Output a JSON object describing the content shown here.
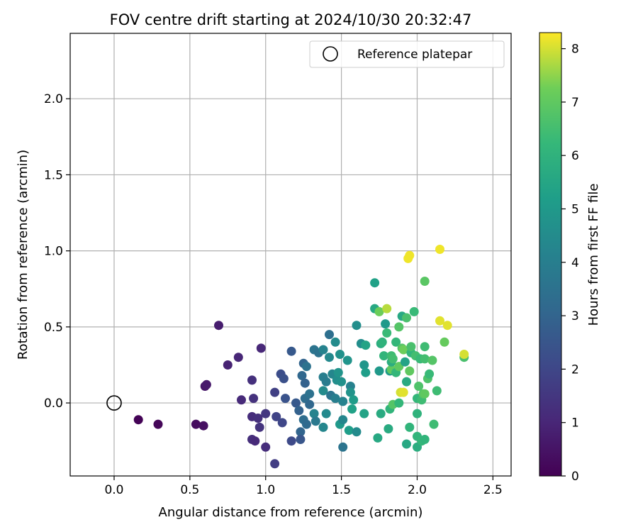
{
  "chart_data": {
    "type": "scatter",
    "title": "FOV centre drift starting at 2024/10/30 20:32:47",
    "xlabel": "Angular distance from reference (arcmin)",
    "ylabel": "Rotation from reference (arcmin)",
    "xlim": [
      -0.29,
      2.62
    ],
    "ylim": [
      -0.48,
      2.43
    ],
    "xticks": [
      0.0,
      0.5,
      1.0,
      1.5,
      2.0,
      2.5
    ],
    "xtick_labels": [
      "0.0",
      "0.5",
      "1.0",
      "1.5",
      "2.0",
      "2.5"
    ],
    "yticks": [
      0.0,
      0.5,
      1.0,
      1.5,
      2.0
    ],
    "ytick_labels": [
      "0.0",
      "0.5",
      "1.0",
      "1.5",
      "2.0"
    ],
    "grid": true,
    "colormap": "viridis",
    "colorbar": {
      "label": "Hours from first FF file",
      "range": [
        0,
        8.3
      ],
      "ticks": [
        0,
        1,
        2,
        3,
        4,
        5,
        6,
        7,
        8
      ],
      "tick_labels": [
        "0",
        "1",
        "2",
        "3",
        "4",
        "5",
        "6",
        "7",
        "8"
      ]
    },
    "legend": {
      "position": "top-right",
      "entries": [
        {
          "label": "Reference platepar",
          "marker": "open-circle"
        }
      ]
    },
    "reference": {
      "x": 0.0,
      "y": 0.0
    },
    "points": [
      [
        0.16,
        -0.11,
        0.05
      ],
      [
        0.29,
        -0.14,
        0.15
      ],
      [
        0.54,
        -0.14,
        0.3
      ],
      [
        0.59,
        -0.15,
        0.4
      ],
      [
        0.6,
        0.11,
        0.55
      ],
      [
        0.61,
        0.12,
        0.65
      ],
      [
        0.69,
        0.51,
        0.75
      ],
      [
        0.75,
        0.25,
        0.9
      ],
      [
        0.82,
        0.3,
        1.0
      ],
      [
        0.84,
        0.02,
        1.1
      ],
      [
        0.91,
        0.15,
        1.3
      ],
      [
        0.92,
        0.03,
        1.35
      ],
      [
        0.91,
        -0.09,
        1.2
      ],
      [
        0.91,
        -0.24,
        1.25
      ],
      [
        0.93,
        -0.25,
        1.1
      ],
      [
        0.95,
        -0.1,
        1.3
      ],
      [
        0.96,
        -0.16,
        1.4
      ],
      [
        0.97,
        0.36,
        1.05
      ],
      [
        1.0,
        -0.07,
        1.5
      ],
      [
        1.0,
        -0.29,
        1.2
      ],
      [
        1.06,
        0.07,
        1.8
      ],
      [
        1.07,
        -0.09,
        1.9
      ],
      [
        1.06,
        -0.4,
        1.7
      ],
      [
        1.1,
        0.19,
        2.2
      ],
      [
        1.11,
        -0.13,
        2.0
      ],
      [
        1.12,
        0.16,
        2.3
      ],
      [
        1.13,
        0.03,
        2.4
      ],
      [
        1.17,
        0.34,
        2.6
      ],
      [
        1.17,
        -0.25,
        2.1
      ],
      [
        1.2,
        0.0,
        2.6
      ],
      [
        1.22,
        -0.05,
        2.9
      ],
      [
        1.23,
        -0.19,
        3.0
      ],
      [
        1.23,
        -0.24,
        2.5
      ],
      [
        1.24,
        0.18,
        3.1
      ],
      [
        1.25,
        0.26,
        3.0
      ],
      [
        1.25,
        -0.11,
        3.3
      ],
      [
        1.26,
        0.03,
        3.3
      ],
      [
        1.26,
        0.13,
        2.9
      ],
      [
        1.27,
        0.24,
        3.5
      ],
      [
        1.27,
        -0.14,
        3.2
      ],
      [
        1.29,
        0.06,
        3.5
      ],
      [
        1.29,
        -0.01,
        3.1
      ],
      [
        1.32,
        0.35,
        3.6
      ],
      [
        1.32,
        -0.07,
        4.2
      ],
      [
        1.33,
        -0.12,
        3.8
      ],
      [
        1.35,
        0.33,
        3.5
      ],
      [
        1.38,
        0.08,
        4.5
      ],
      [
        1.38,
        0.17,
        4.0
      ],
      [
        1.38,
        0.35,
        4.2
      ],
      [
        1.38,
        -0.16,
        4.3
      ],
      [
        1.4,
        0.14,
        3.9
      ],
      [
        1.4,
        -0.07,
        4.4
      ],
      [
        1.42,
        0.45,
        3.4
      ],
      [
        1.42,
        0.3,
        4.4
      ],
      [
        1.43,
        0.05,
        3.6
      ],
      [
        1.44,
        0.19,
        4.3
      ],
      [
        1.46,
        0.03,
        4.0
      ],
      [
        1.46,
        0.4,
        4.5
      ],
      [
        1.47,
        0.15,
        4.6
      ],
      [
        1.48,
        0.2,
        4.8
      ],
      [
        1.49,
        0.32,
        4.7
      ],
      [
        1.49,
        -0.14,
        5.0
      ],
      [
        1.51,
        0.01,
        4.2
      ],
      [
        1.5,
        0.14,
        4.7
      ],
      [
        1.51,
        -0.11,
        4.3
      ],
      [
        1.51,
        -0.29,
        3.6
      ],
      [
        1.54,
        0.28,
        4.8
      ],
      [
        1.55,
        -0.18,
        5.2
      ],
      [
        1.56,
        0.11,
        4.1
      ],
      [
        1.56,
        0.07,
        4.8
      ],
      [
        1.57,
        -0.04,
        5.3
      ],
      [
        1.58,
        0.02,
        5.1
      ],
      [
        1.6,
        0.51,
        4.6
      ],
      [
        1.6,
        -0.19,
        4.5
      ],
      [
        1.63,
        0.39,
        4.6
      ],
      [
        1.65,
        0.25,
        4.9
      ],
      [
        1.65,
        -0.07,
        5.4
      ],
      [
        1.66,
        0.2,
        5.2
      ],
      [
        1.66,
        0.38,
        5.4
      ],
      [
        1.72,
        0.62,
        5.6
      ],
      [
        1.72,
        0.79,
        5.3
      ],
      [
        1.74,
        -0.23,
        5.6
      ],
      [
        1.75,
        0.6,
        7.2
      ],
      [
        1.75,
        0.21,
        5.0
      ],
      [
        1.76,
        0.39,
        5.8
      ],
      [
        1.77,
        0.4,
        6.0
      ],
      [
        1.76,
        -0.07,
        5.7
      ],
      [
        1.78,
        0.31,
        6.1
      ],
      [
        1.79,
        0.52,
        5.0
      ],
      [
        1.8,
        0.62,
        7.8
      ],
      [
        1.8,
        0.46,
        6.3
      ],
      [
        1.81,
        -0.17,
        5.7
      ],
      [
        1.82,
        0.21,
        5.1
      ],
      [
        1.82,
        -0.04,
        6.1
      ],
      [
        1.83,
        0.31,
        6.4
      ],
      [
        1.83,
        0.22,
        7.0
      ],
      [
        1.83,
        0.27,
        5.8
      ],
      [
        1.84,
        0.29,
        6.5
      ],
      [
        1.84,
        -0.01,
        6.8
      ],
      [
        1.86,
        0.2,
        6.2
      ],
      [
        1.86,
        0.4,
        6.2
      ],
      [
        1.88,
        0.0,
        6.2
      ],
      [
        1.88,
        0.24,
        7.0
      ],
      [
        1.88,
        0.5,
        6.8
      ],
      [
        1.89,
        0.07,
        8.0
      ],
      [
        1.9,
        0.36,
        6.8
      ],
      [
        1.9,
        0.57,
        5.6
      ],
      [
        1.91,
        0.07,
        8.1
      ],
      [
        1.91,
        0.35,
        7.2
      ],
      [
        1.92,
        0.27,
        5.4
      ],
      [
        1.93,
        0.14,
        5.7
      ],
      [
        1.93,
        0.56,
        6.6
      ],
      [
        1.93,
        -0.27,
        5.6
      ],
      [
        1.94,
        0.95,
        8.2
      ],
      [
        1.95,
        0.97,
        8.2
      ],
      [
        1.95,
        -0.16,
        6.1
      ],
      [
        1.95,
        0.21,
        7.0
      ],
      [
        1.96,
        0.33,
        6.1
      ],
      [
        1.96,
        0.37,
        6.6
      ],
      [
        1.98,
        0.6,
        6.3
      ],
      [
        1.99,
        0.31,
        6.5
      ],
      [
        2.0,
        0.03,
        6.2
      ],
      [
        2.0,
        -0.07,
        6.0
      ],
      [
        2.0,
        -0.22,
        6.1
      ],
      [
        2.0,
        -0.29,
        5.8
      ],
      [
        2.01,
        0.11,
        6.7
      ],
      [
        2.02,
        0.29,
        6.3
      ],
      [
        2.03,
        0.02,
        6.4
      ],
      [
        2.03,
        -0.25,
        6.2
      ],
      [
        2.04,
        0.06,
        6.8
      ],
      [
        2.05,
        0.06,
        7.0
      ],
      [
        2.05,
        0.29,
        6.5
      ],
      [
        2.05,
        -0.24,
        6.1
      ],
      [
        2.05,
        0.8,
        6.9
      ],
      [
        2.05,
        0.37,
        6.4
      ],
      [
        2.07,
        0.16,
        6.7
      ],
      [
        2.08,
        0.19,
        6.3
      ],
      [
        2.1,
        0.28,
        6.8
      ],
      [
        2.11,
        -0.14,
        6.4
      ],
      [
        2.13,
        0.08,
        6.4
      ],
      [
        2.15,
        1.01,
        8.2
      ],
      [
        2.15,
        0.54,
        8.1
      ],
      [
        2.18,
        0.4,
        7.1
      ],
      [
        2.2,
        0.51,
        8.1
      ],
      [
        2.31,
        0.3,
        6.6
      ],
      [
        2.31,
        0.32,
        8.0
      ]
    ]
  }
}
